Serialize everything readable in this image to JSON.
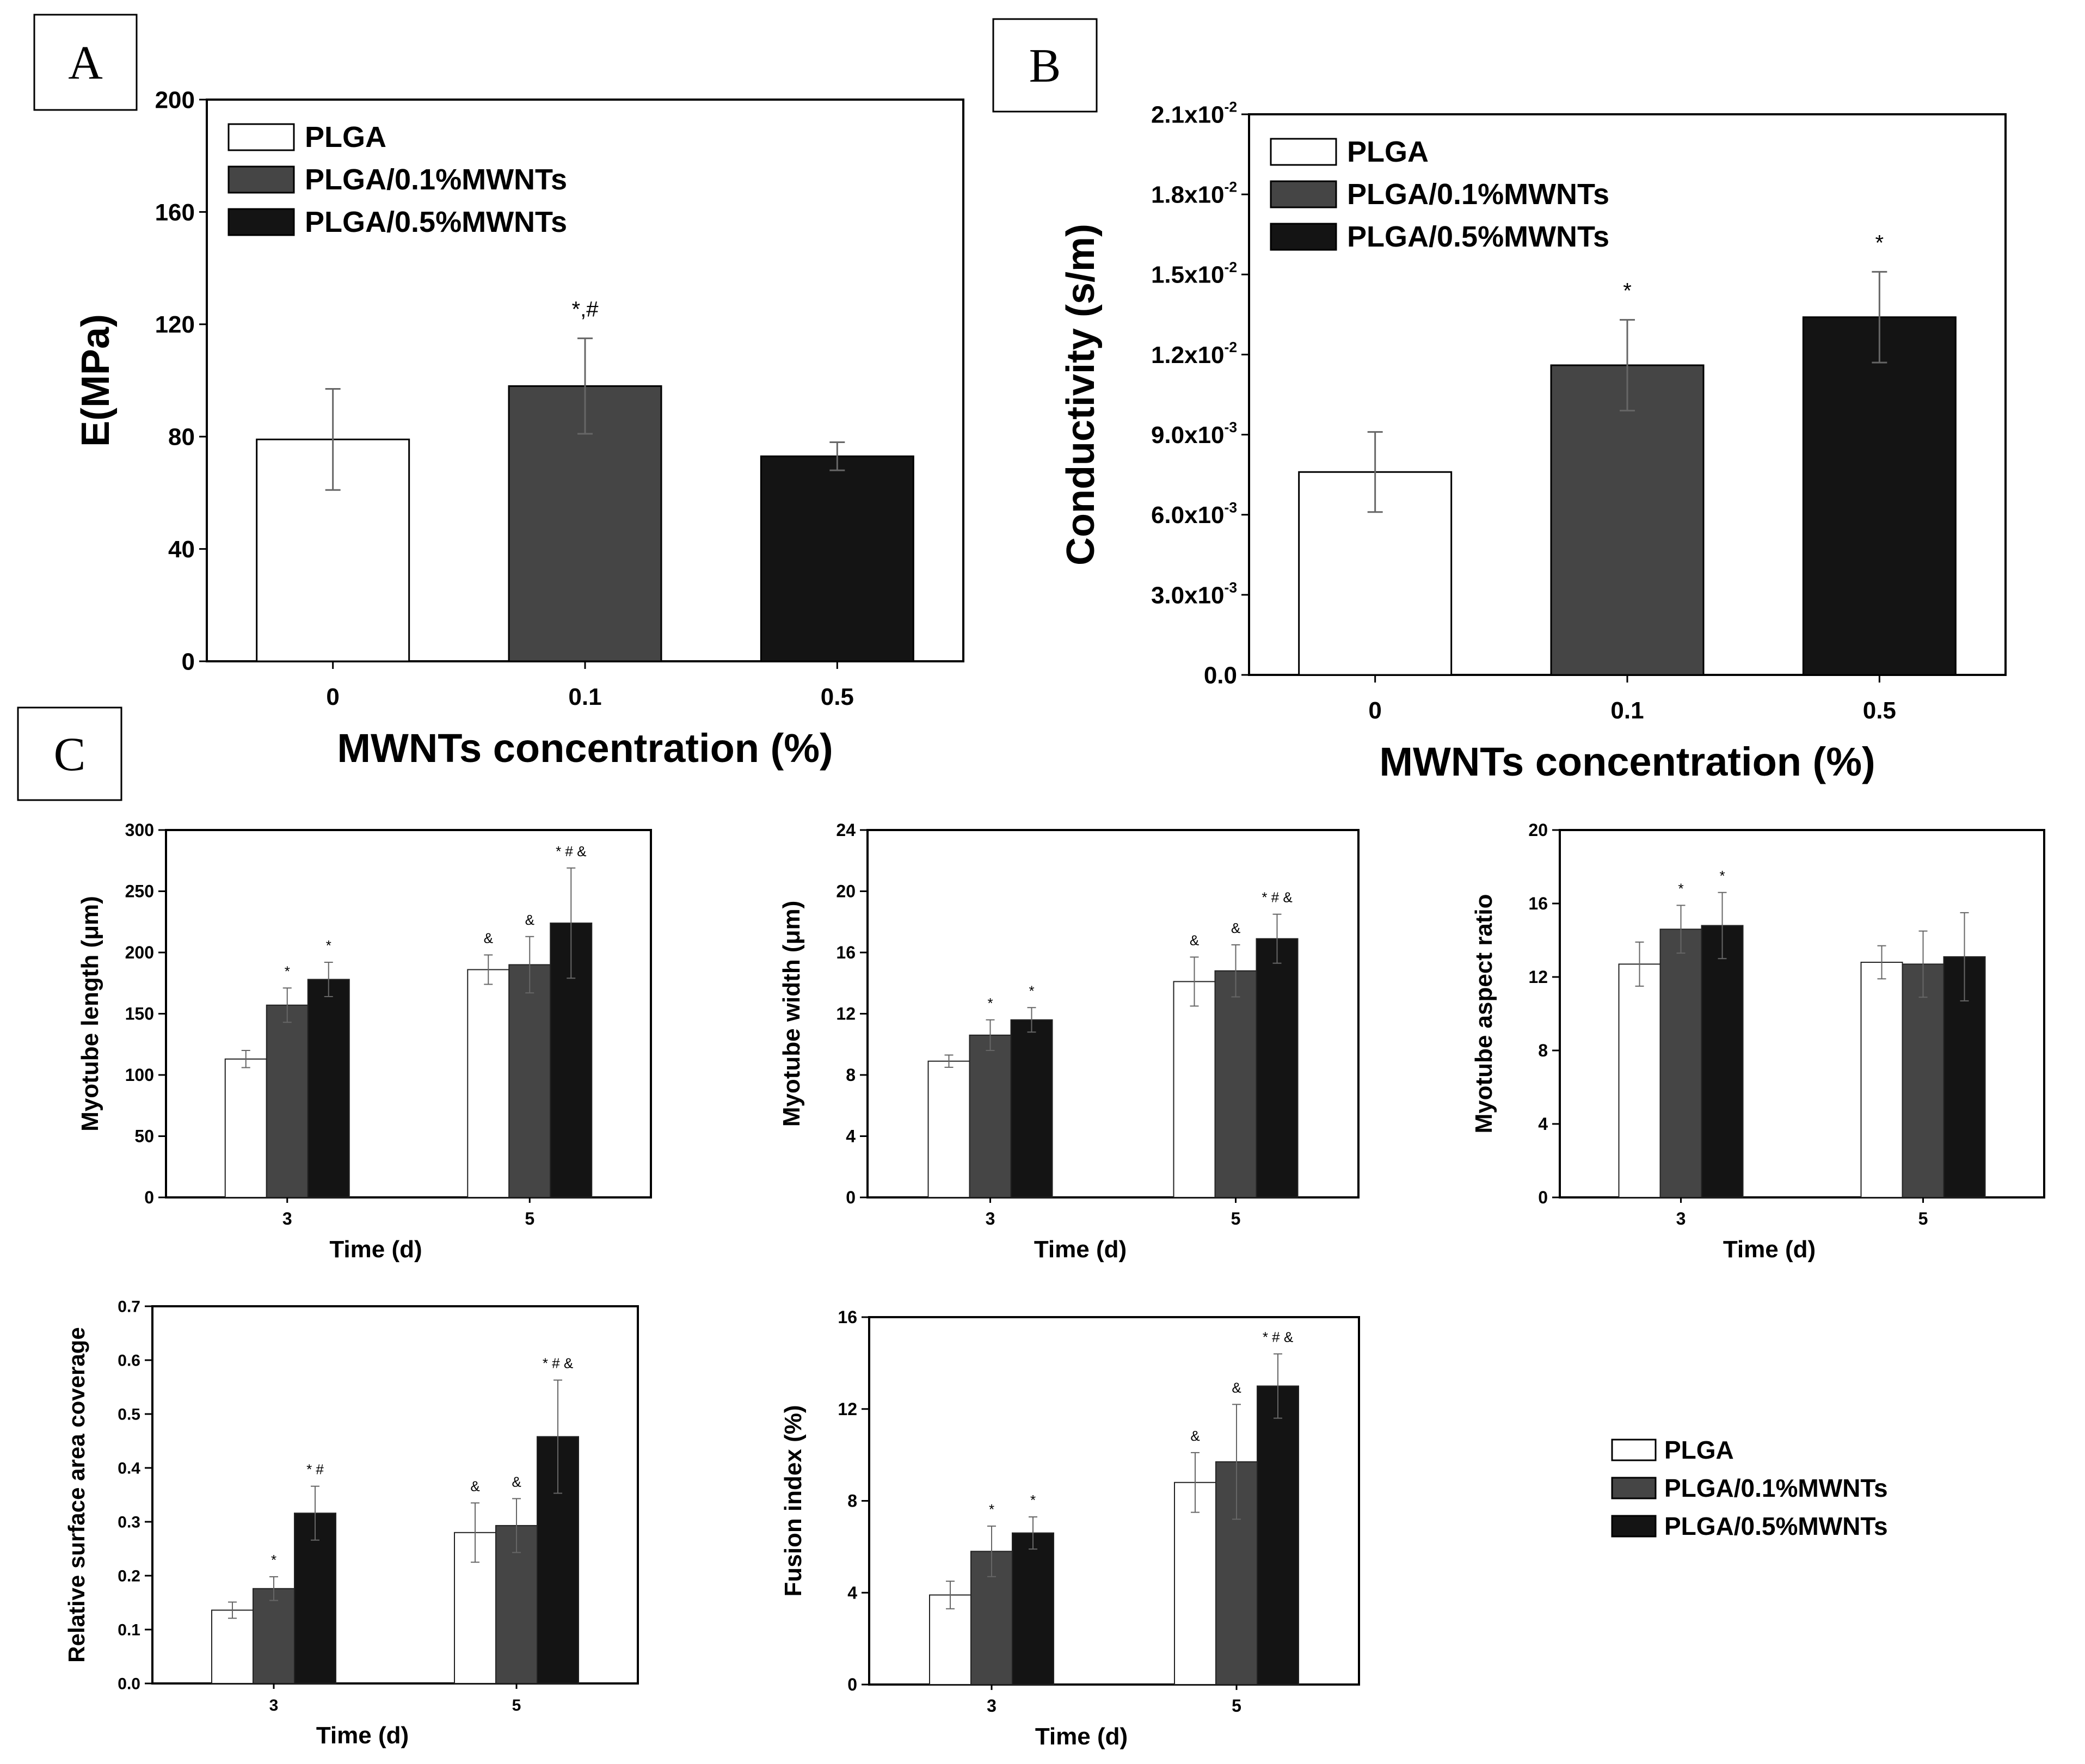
{
  "colors": {
    "PLGA": "#ffffff",
    "PLGA/0.1%MWNTs": "#454545",
    "PLGA/0.5%MWNTs": "#141414"
  },
  "legend": [
    "PLGA",
    "PLGA/0.1%MWNTs",
    "PLGA/0.5%MWNTs"
  ],
  "panels": {
    "A": {
      "letter": "A"
    },
    "B": {
      "letter": "B"
    },
    "C": {
      "letter": "C"
    }
  },
  "chart_data": [
    {
      "id": "A",
      "type": "bar",
      "title": "",
      "xlabel": "MWNTs concentration (%)",
      "ylabel": "E(MPa)",
      "categories": [
        "0",
        "0.1",
        "0.5"
      ],
      "ylim": [
        0,
        200
      ],
      "yticks": [
        0,
        40,
        80,
        120,
        160,
        200
      ],
      "ytick_labels": [
        "0",
        "40",
        "80",
        "120",
        "160",
        "200"
      ],
      "bars": [
        {
          "series": "PLGA",
          "value": 79,
          "err": 18,
          "annot": ""
        },
        {
          "series": "PLGA/0.1%MWNTs",
          "value": 98,
          "err": 17,
          "annot": "*,#"
        },
        {
          "series": "PLGA/0.5%MWNTs",
          "value": 73,
          "err": 5,
          "annot": ""
        }
      ],
      "legend": [
        "PLGA",
        "PLGA/0.1%MWNTs",
        "PLGA/0.5%MWNTs"
      ]
    },
    {
      "id": "B",
      "type": "bar",
      "title": "",
      "xlabel": "MWNTs concentration (%)",
      "ylabel": "Conductivity (s/m)",
      "categories": [
        "0",
        "0.1",
        "0.5"
      ],
      "ylim": [
        0,
        0.021
      ],
      "yticks": [
        0,
        0.003,
        0.006,
        0.009,
        0.012,
        0.015,
        0.018,
        0.021
      ],
      "ytick_labels": [
        "0.0",
        "3.0x10-3",
        "6.0x10-3",
        "9.0x10-3",
        "1.2x10-2",
        "1.5x10-2",
        "1.8x10-2",
        "2.1x10-2"
      ],
      "bars": [
        {
          "series": "PLGA",
          "value": 0.0076,
          "err": 0.0015,
          "annot": ""
        },
        {
          "series": "PLGA/0.1%MWNTs",
          "value": 0.0116,
          "err": 0.0017,
          "annot": "*"
        },
        {
          "series": "PLGA/0.5%MWNTs",
          "value": 0.0134,
          "err": 0.0017,
          "annot": "*"
        }
      ],
      "legend": [
        "PLGA",
        "PLGA/0.1%MWNTs",
        "PLGA/0.5%MWNTs"
      ]
    },
    {
      "id": "C1",
      "type": "bar",
      "title": "",
      "xlabel": "Time (d)",
      "ylabel": "Myotube length (μm)",
      "categories": [
        "3",
        "5"
      ],
      "ylim": [
        0,
        300
      ],
      "yticks": [
        0,
        50,
        100,
        150,
        200,
        250,
        300
      ],
      "ytick_labels": [
        "0",
        "50",
        "100",
        "150",
        "200",
        "250",
        "300"
      ],
      "series": [
        {
          "name": "PLGA",
          "values": [
            113,
            186
          ],
          "err": [
            7,
            12
          ],
          "annot": [
            "",
            "&"
          ]
        },
        {
          "name": "PLGA/0.1%MWNTs",
          "values": [
            157,
            190
          ],
          "err": [
            14,
            23
          ],
          "annot": [
            "*",
            "&"
          ]
        },
        {
          "name": "PLGA/0.5%MWNTs",
          "values": [
            178,
            224
          ],
          "err": [
            14,
            45
          ],
          "annot": [
            "*",
            "* # &"
          ]
        }
      ]
    },
    {
      "id": "C2",
      "type": "bar",
      "title": "",
      "xlabel": "Time (d)",
      "ylabel": "Myotube width (μm)",
      "categories": [
        "3",
        "5"
      ],
      "ylim": [
        0,
        24
      ],
      "yticks": [
        0,
        4,
        8,
        12,
        16,
        20,
        24
      ],
      "ytick_labels": [
        "0",
        "4",
        "8",
        "12",
        "16",
        "20",
        "24"
      ],
      "series": [
        {
          "name": "PLGA",
          "values": [
            8.9,
            14.1
          ],
          "err": [
            0.4,
            1.6
          ],
          "annot": [
            "",
            "&"
          ]
        },
        {
          "name": "PLGA/0.1%MWNTs",
          "values": [
            10.6,
            14.8
          ],
          "err": [
            1.0,
            1.7
          ],
          "annot": [
            "*",
            "&"
          ]
        },
        {
          "name": "PLGA/0.5%MWNTs",
          "values": [
            11.6,
            16.9
          ],
          "err": [
            0.8,
            1.6
          ],
          "annot": [
            "*",
            "* # &"
          ]
        }
      ]
    },
    {
      "id": "C3",
      "type": "bar",
      "title": "",
      "xlabel": "Time (d)",
      "ylabel": "Myotube aspect ratio",
      "categories": [
        "3",
        "5"
      ],
      "ylim": [
        0,
        20
      ],
      "yticks": [
        0,
        4,
        8,
        12,
        16,
        20
      ],
      "ytick_labels": [
        "0",
        "4",
        "8",
        "12",
        "16",
        "20"
      ],
      "series": [
        {
          "name": "PLGA",
          "values": [
            12.7,
            12.8
          ],
          "err": [
            1.2,
            0.9
          ],
          "annot": [
            "",
            ""
          ]
        },
        {
          "name": "PLGA/0.1%MWNTs",
          "values": [
            14.6,
            12.7
          ],
          "err": [
            1.3,
            1.8
          ],
          "annot": [
            "*",
            ""
          ]
        },
        {
          "name": "PLGA/0.5%MWNTs",
          "values": [
            14.8,
            13.1
          ],
          "err": [
            1.8,
            2.4
          ],
          "annot": [
            "*",
            ""
          ]
        }
      ]
    },
    {
      "id": "C4",
      "type": "bar",
      "title": "",
      "xlabel": "Time (d)",
      "ylabel": "Relative surface area coverage",
      "categories": [
        "3",
        "5"
      ],
      "ylim": [
        0,
        0.7
      ],
      "yticks": [
        0,
        0.1,
        0.2,
        0.3,
        0.4,
        0.5,
        0.6,
        0.7
      ],
      "ytick_labels": [
        "0.0",
        "0.1",
        "0.2",
        "0.3",
        "0.4",
        "0.5",
        "0.6",
        "0.7"
      ],
      "series": [
        {
          "name": "PLGA",
          "values": [
            0.136,
            0.28
          ],
          "err": [
            0.015,
            0.055
          ],
          "annot": [
            "",
            "&"
          ]
        },
        {
          "name": "PLGA/0.1%MWNTs",
          "values": [
            0.176,
            0.293
          ],
          "err": [
            0.022,
            0.05
          ],
          "annot": [
            "*",
            "&"
          ]
        },
        {
          "name": "PLGA/0.5%MWNTs",
          "values": [
            0.316,
            0.458
          ],
          "err": [
            0.05,
            0.105
          ],
          "annot": [
            "* #",
            "* # &"
          ]
        }
      ]
    },
    {
      "id": "C5",
      "type": "bar",
      "title": "",
      "xlabel": "Time (d)",
      "ylabel": "Fusion index (%)",
      "categories": [
        "3",
        "5"
      ],
      "ylim": [
        0,
        16
      ],
      "yticks": [
        0,
        4,
        8,
        12,
        16
      ],
      "ytick_labels": [
        "0",
        "4",
        "8",
        "12",
        "16"
      ],
      "series": [
        {
          "name": "PLGA",
          "values": [
            3.9,
            8.8
          ],
          "err": [
            0.6,
            1.3
          ],
          "annot": [
            "",
            "&"
          ]
        },
        {
          "name": "PLGA/0.1%MWNTs",
          "values": [
            5.8,
            9.7
          ],
          "err": [
            1.1,
            2.5
          ],
          "annot": [
            "*",
            "&"
          ]
        },
        {
          "name": "PLGA/0.5%MWNTs",
          "values": [
            6.6,
            13.0
          ],
          "err": [
            0.7,
            1.4
          ],
          "annot": [
            "*",
            "* # &"
          ]
        }
      ]
    }
  ]
}
